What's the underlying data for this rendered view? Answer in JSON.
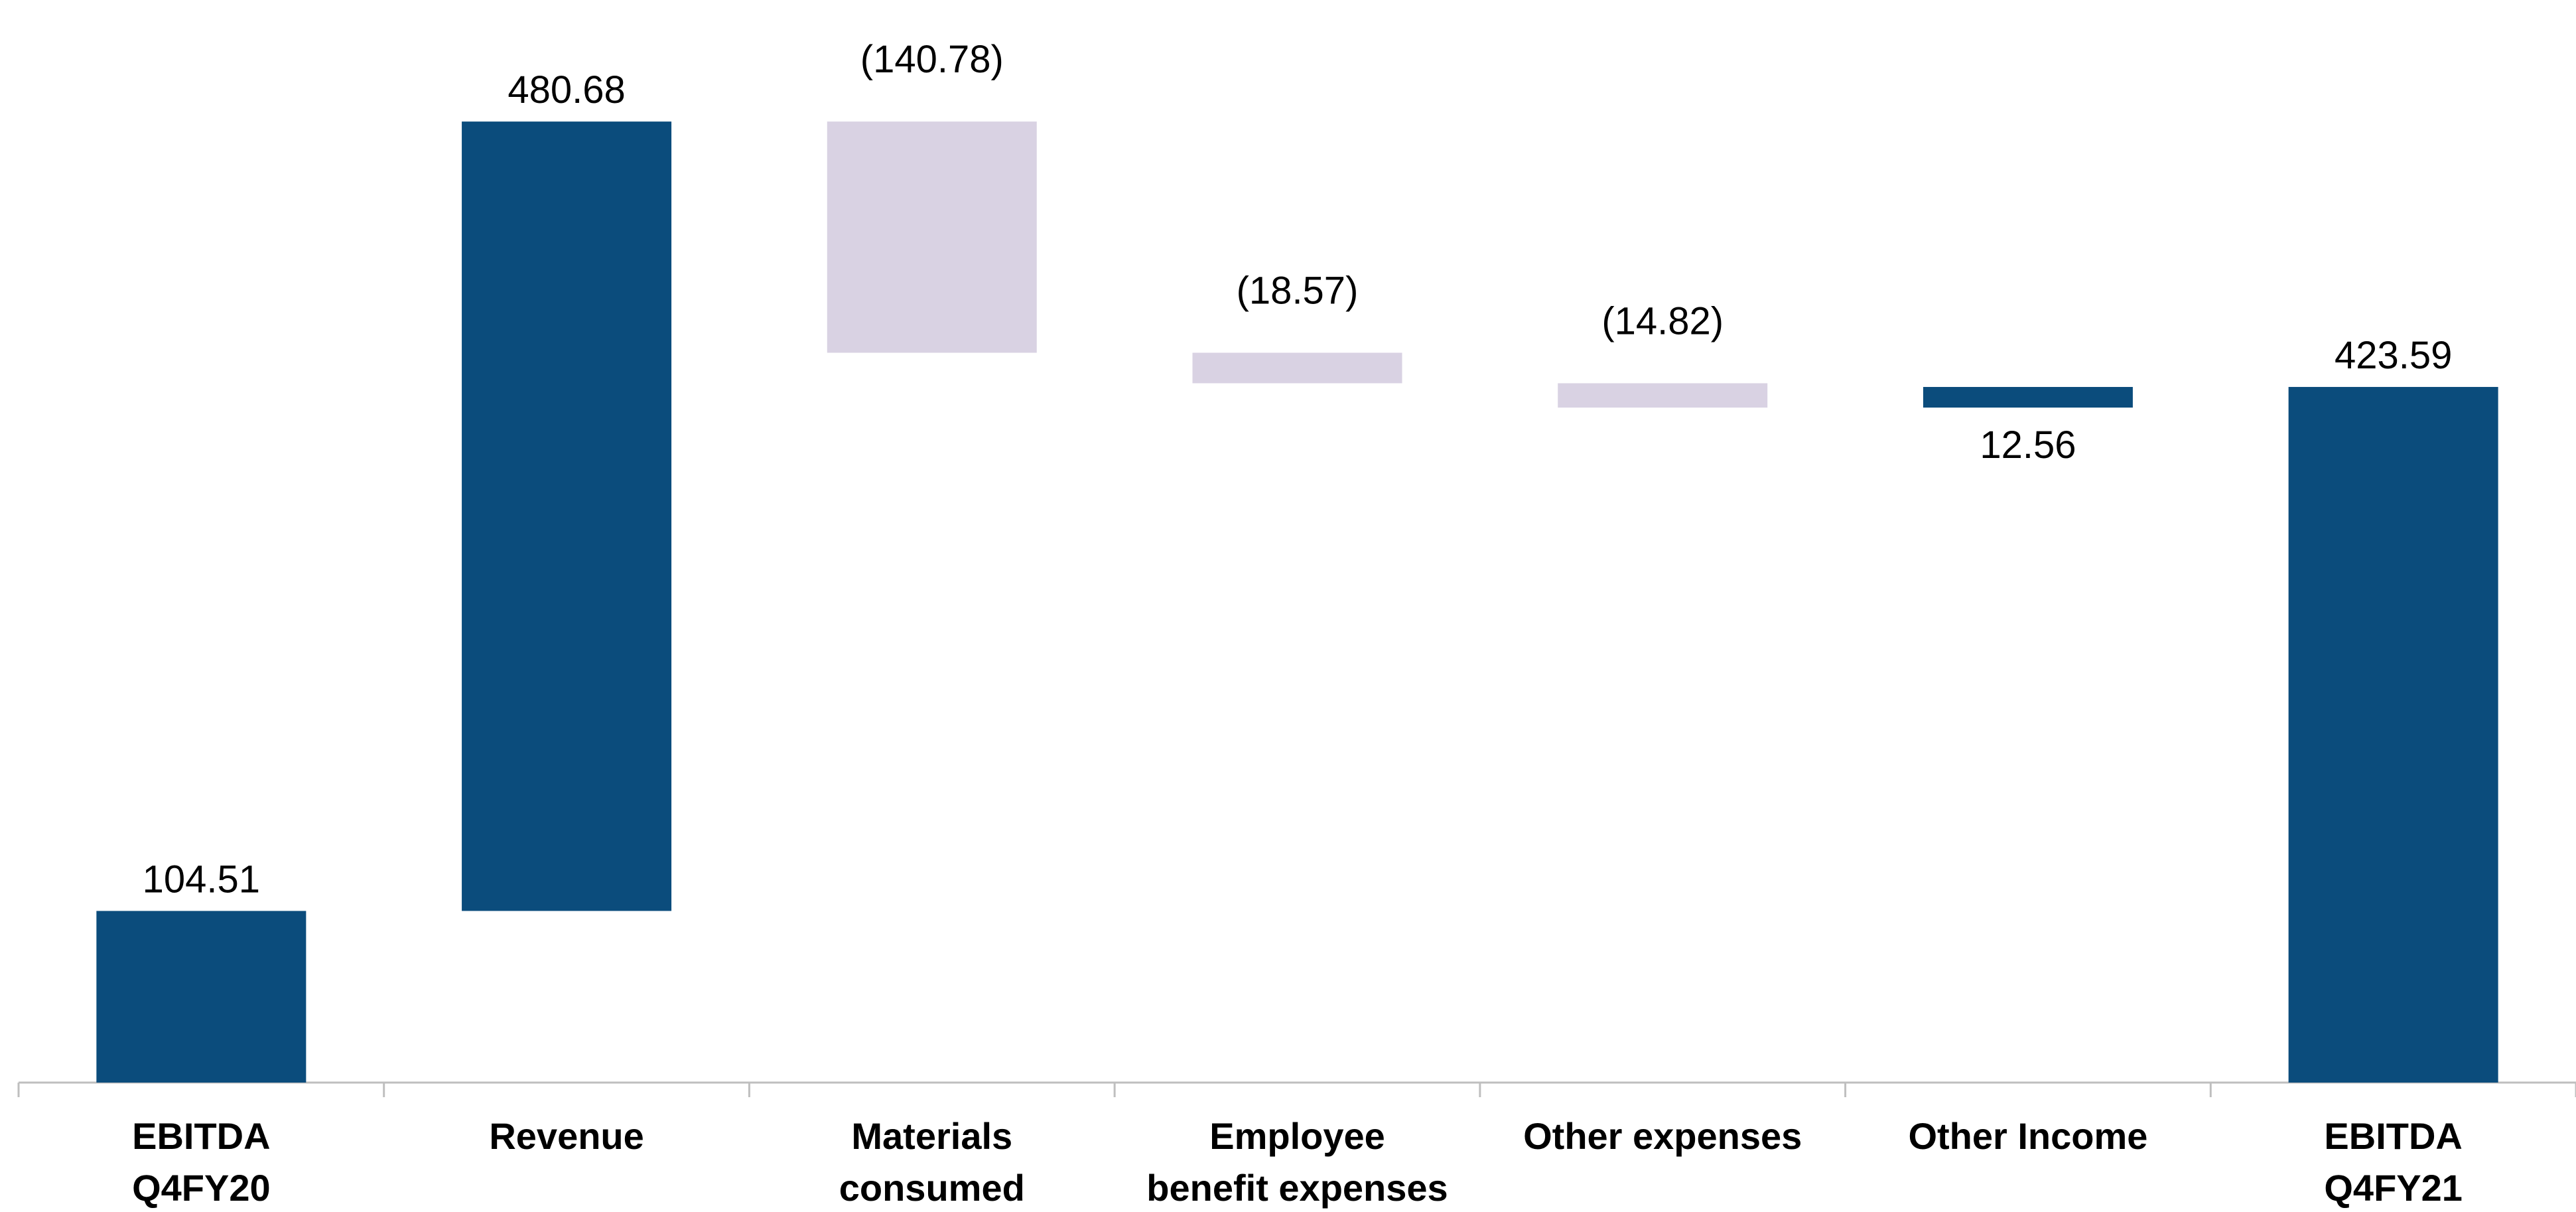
{
  "chart_data": {
    "type": "waterfall",
    "title": "",
    "xlabel": "",
    "ylabel": "",
    "ylim": [
      0,
      604.24
    ],
    "grid": false,
    "legend": "none",
    "colors": {
      "increase": "#0B4C7C",
      "decrease": "#D9D2E3",
      "axis": "#BFBFBF"
    },
    "categories": [
      {
        "lines": [
          "EBITDA",
          "Q4FY20"
        ]
      },
      {
        "lines": [
          "Revenue"
        ]
      },
      {
        "lines": [
          "Materials",
          "consumed"
        ]
      },
      {
        "lines": [
          "Employee",
          "benefit expenses"
        ]
      },
      {
        "lines": [
          "Other expenses"
        ]
      },
      {
        "lines": [
          "Other Income"
        ]
      },
      {
        "lines": [
          "EBITDA",
          "Q4FY21"
        ]
      }
    ],
    "steps": [
      {
        "kind": "total",
        "value": 104.51,
        "label": "104.51"
      },
      {
        "kind": "delta",
        "value": 480.68,
        "label": "480.68"
      },
      {
        "kind": "delta",
        "value": -140.78,
        "label": "(140.78)"
      },
      {
        "kind": "delta",
        "value": -18.57,
        "label": "(18.57)"
      },
      {
        "kind": "delta",
        "value": -14.82,
        "label": "(14.82)"
      },
      {
        "kind": "delta",
        "value": 12.56,
        "label": "12.56"
      },
      {
        "kind": "total",
        "value": 423.59,
        "label": "423.59"
      }
    ]
  }
}
